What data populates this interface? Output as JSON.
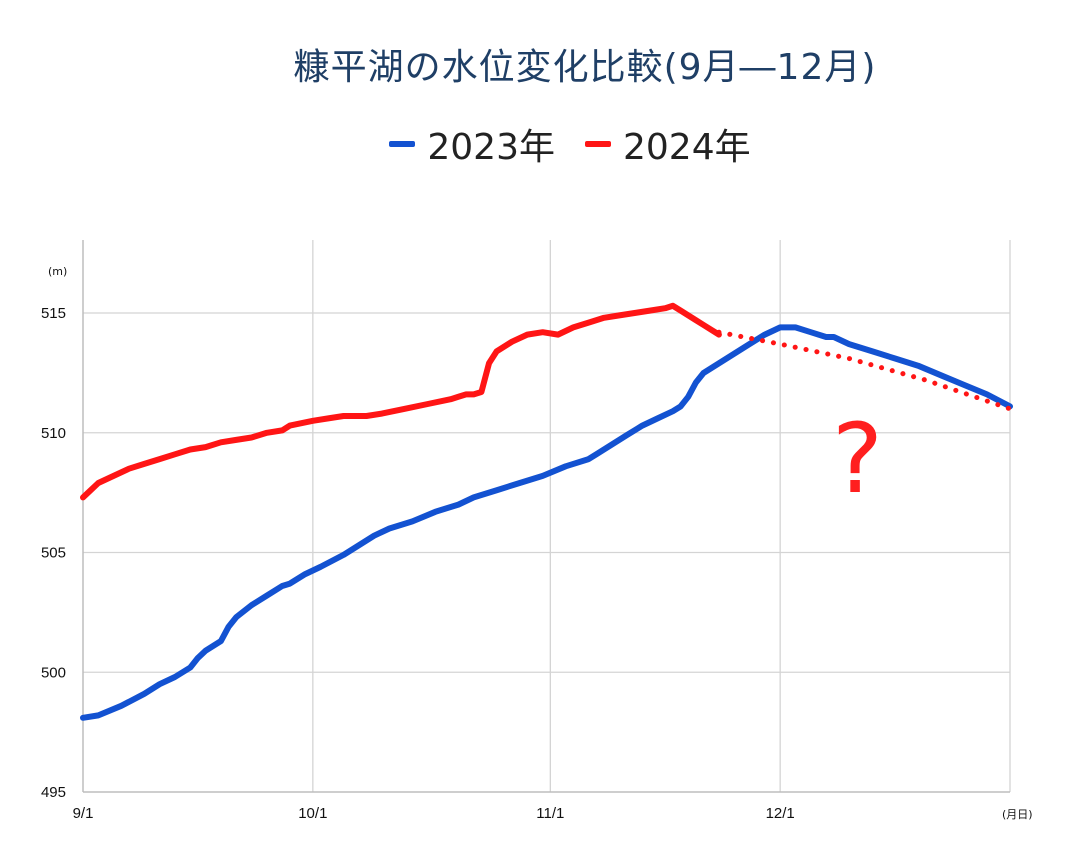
{
  "chart_data": {
    "type": "line",
    "title": "糠平湖の水位変化比較(9月―12月)",
    "y_unit": "(m)",
    "x_unit": "(月日)",
    "x_ticks": [
      {
        "label": "9/1",
        "day": 0
      },
      {
        "label": "10/1",
        "day": 30
      },
      {
        "label": "11/1",
        "day": 61
      },
      {
        "label": "12/1",
        "day": 91
      }
    ],
    "xlim": [
      0,
      121
    ],
    "ylim": [
      495,
      515
    ],
    "y_ticks": [
      495,
      500,
      505,
      510,
      515
    ],
    "grid": true,
    "legend_position": "top-center",
    "annotation": "?",
    "series": [
      {
        "name": "2023年",
        "color": "#1352d1",
        "style": "solid",
        "points": [
          [
            0,
            498.1
          ],
          [
            2,
            498.2
          ],
          [
            5,
            498.6
          ],
          [
            8,
            499.1
          ],
          [
            10,
            499.5
          ],
          [
            12,
            499.8
          ],
          [
            14,
            500.2
          ],
          [
            15,
            500.6
          ],
          [
            16,
            500.9
          ],
          [
            18,
            501.3
          ],
          [
            19,
            501.9
          ],
          [
            20,
            502.3
          ],
          [
            22,
            502.8
          ],
          [
            24,
            503.2
          ],
          [
            26,
            503.6
          ],
          [
            27,
            503.7
          ],
          [
            29,
            504.1
          ],
          [
            31,
            504.4
          ],
          [
            34,
            504.9
          ],
          [
            36,
            505.3
          ],
          [
            38,
            505.7
          ],
          [
            40,
            506.0
          ],
          [
            43,
            506.3
          ],
          [
            46,
            506.7
          ],
          [
            49,
            507.0
          ],
          [
            51,
            507.3
          ],
          [
            54,
            507.6
          ],
          [
            57,
            507.9
          ],
          [
            60,
            508.2
          ],
          [
            63,
            508.6
          ],
          [
            66,
            508.9
          ],
          [
            67,
            509.1
          ],
          [
            69,
            509.5
          ],
          [
            71,
            509.9
          ],
          [
            73,
            510.3
          ],
          [
            75,
            510.6
          ],
          [
            77,
            510.9
          ],
          [
            78,
            511.1
          ],
          [
            79,
            511.5
          ],
          [
            80,
            512.1
          ],
          [
            81,
            512.5
          ],
          [
            83,
            512.9
          ],
          [
            85,
            513.3
          ],
          [
            87,
            513.7
          ],
          [
            89,
            514.1
          ],
          [
            91,
            514.4
          ],
          [
            93,
            514.4
          ],
          [
            95,
            514.2
          ],
          [
            97,
            514.0
          ],
          [
            98,
            514.0
          ],
          [
            100,
            513.7
          ],
          [
            103,
            513.4
          ],
          [
            106,
            513.1
          ],
          [
            109,
            512.8
          ],
          [
            112,
            512.4
          ],
          [
            115,
            512.0
          ],
          [
            118,
            511.6
          ],
          [
            121,
            511.1
          ]
        ]
      },
      {
        "name": "2024年",
        "color": "#ff1515",
        "style": "solid",
        "points": [
          [
            0,
            507.3
          ],
          [
            1,
            507.6
          ],
          [
            2,
            507.9
          ],
          [
            4,
            508.2
          ],
          [
            6,
            508.5
          ],
          [
            8,
            508.7
          ],
          [
            10,
            508.9
          ],
          [
            12,
            509.1
          ],
          [
            14,
            509.3
          ],
          [
            16,
            509.4
          ],
          [
            18,
            509.6
          ],
          [
            20,
            509.7
          ],
          [
            22,
            509.8
          ],
          [
            24,
            510.0
          ],
          [
            26,
            510.1
          ],
          [
            27,
            510.3
          ],
          [
            30,
            510.5
          ],
          [
            32,
            510.6
          ],
          [
            34,
            510.7
          ],
          [
            37,
            510.7
          ],
          [
            39,
            510.8
          ],
          [
            42,
            511.0
          ],
          [
            45,
            511.2
          ],
          [
            48,
            511.4
          ],
          [
            49,
            511.5
          ],
          [
            50,
            511.6
          ],
          [
            51,
            511.6
          ],
          [
            52,
            511.7
          ],
          [
            53,
            512.9
          ],
          [
            54,
            513.4
          ],
          [
            56,
            513.8
          ],
          [
            58,
            514.1
          ],
          [
            60,
            514.2
          ],
          [
            62,
            514.1
          ],
          [
            64,
            514.4
          ],
          [
            66,
            514.6
          ],
          [
            68,
            514.8
          ],
          [
            70,
            514.9
          ],
          [
            72,
            515.0
          ],
          [
            74,
            515.1
          ],
          [
            76,
            515.2
          ],
          [
            77,
            515.3
          ],
          [
            78,
            515.1
          ],
          [
            80,
            514.7
          ],
          [
            81,
            514.5
          ],
          [
            83,
            514.1
          ]
        ]
      },
      {
        "name": "",
        "color": "#ff1515",
        "style": "dotted",
        "points": [
          [
            83,
            514.2
          ],
          [
            91,
            513.7
          ],
          [
            100,
            513.1
          ],
          [
            110,
            512.2
          ],
          [
            121,
            511.0
          ]
        ]
      }
    ]
  }
}
